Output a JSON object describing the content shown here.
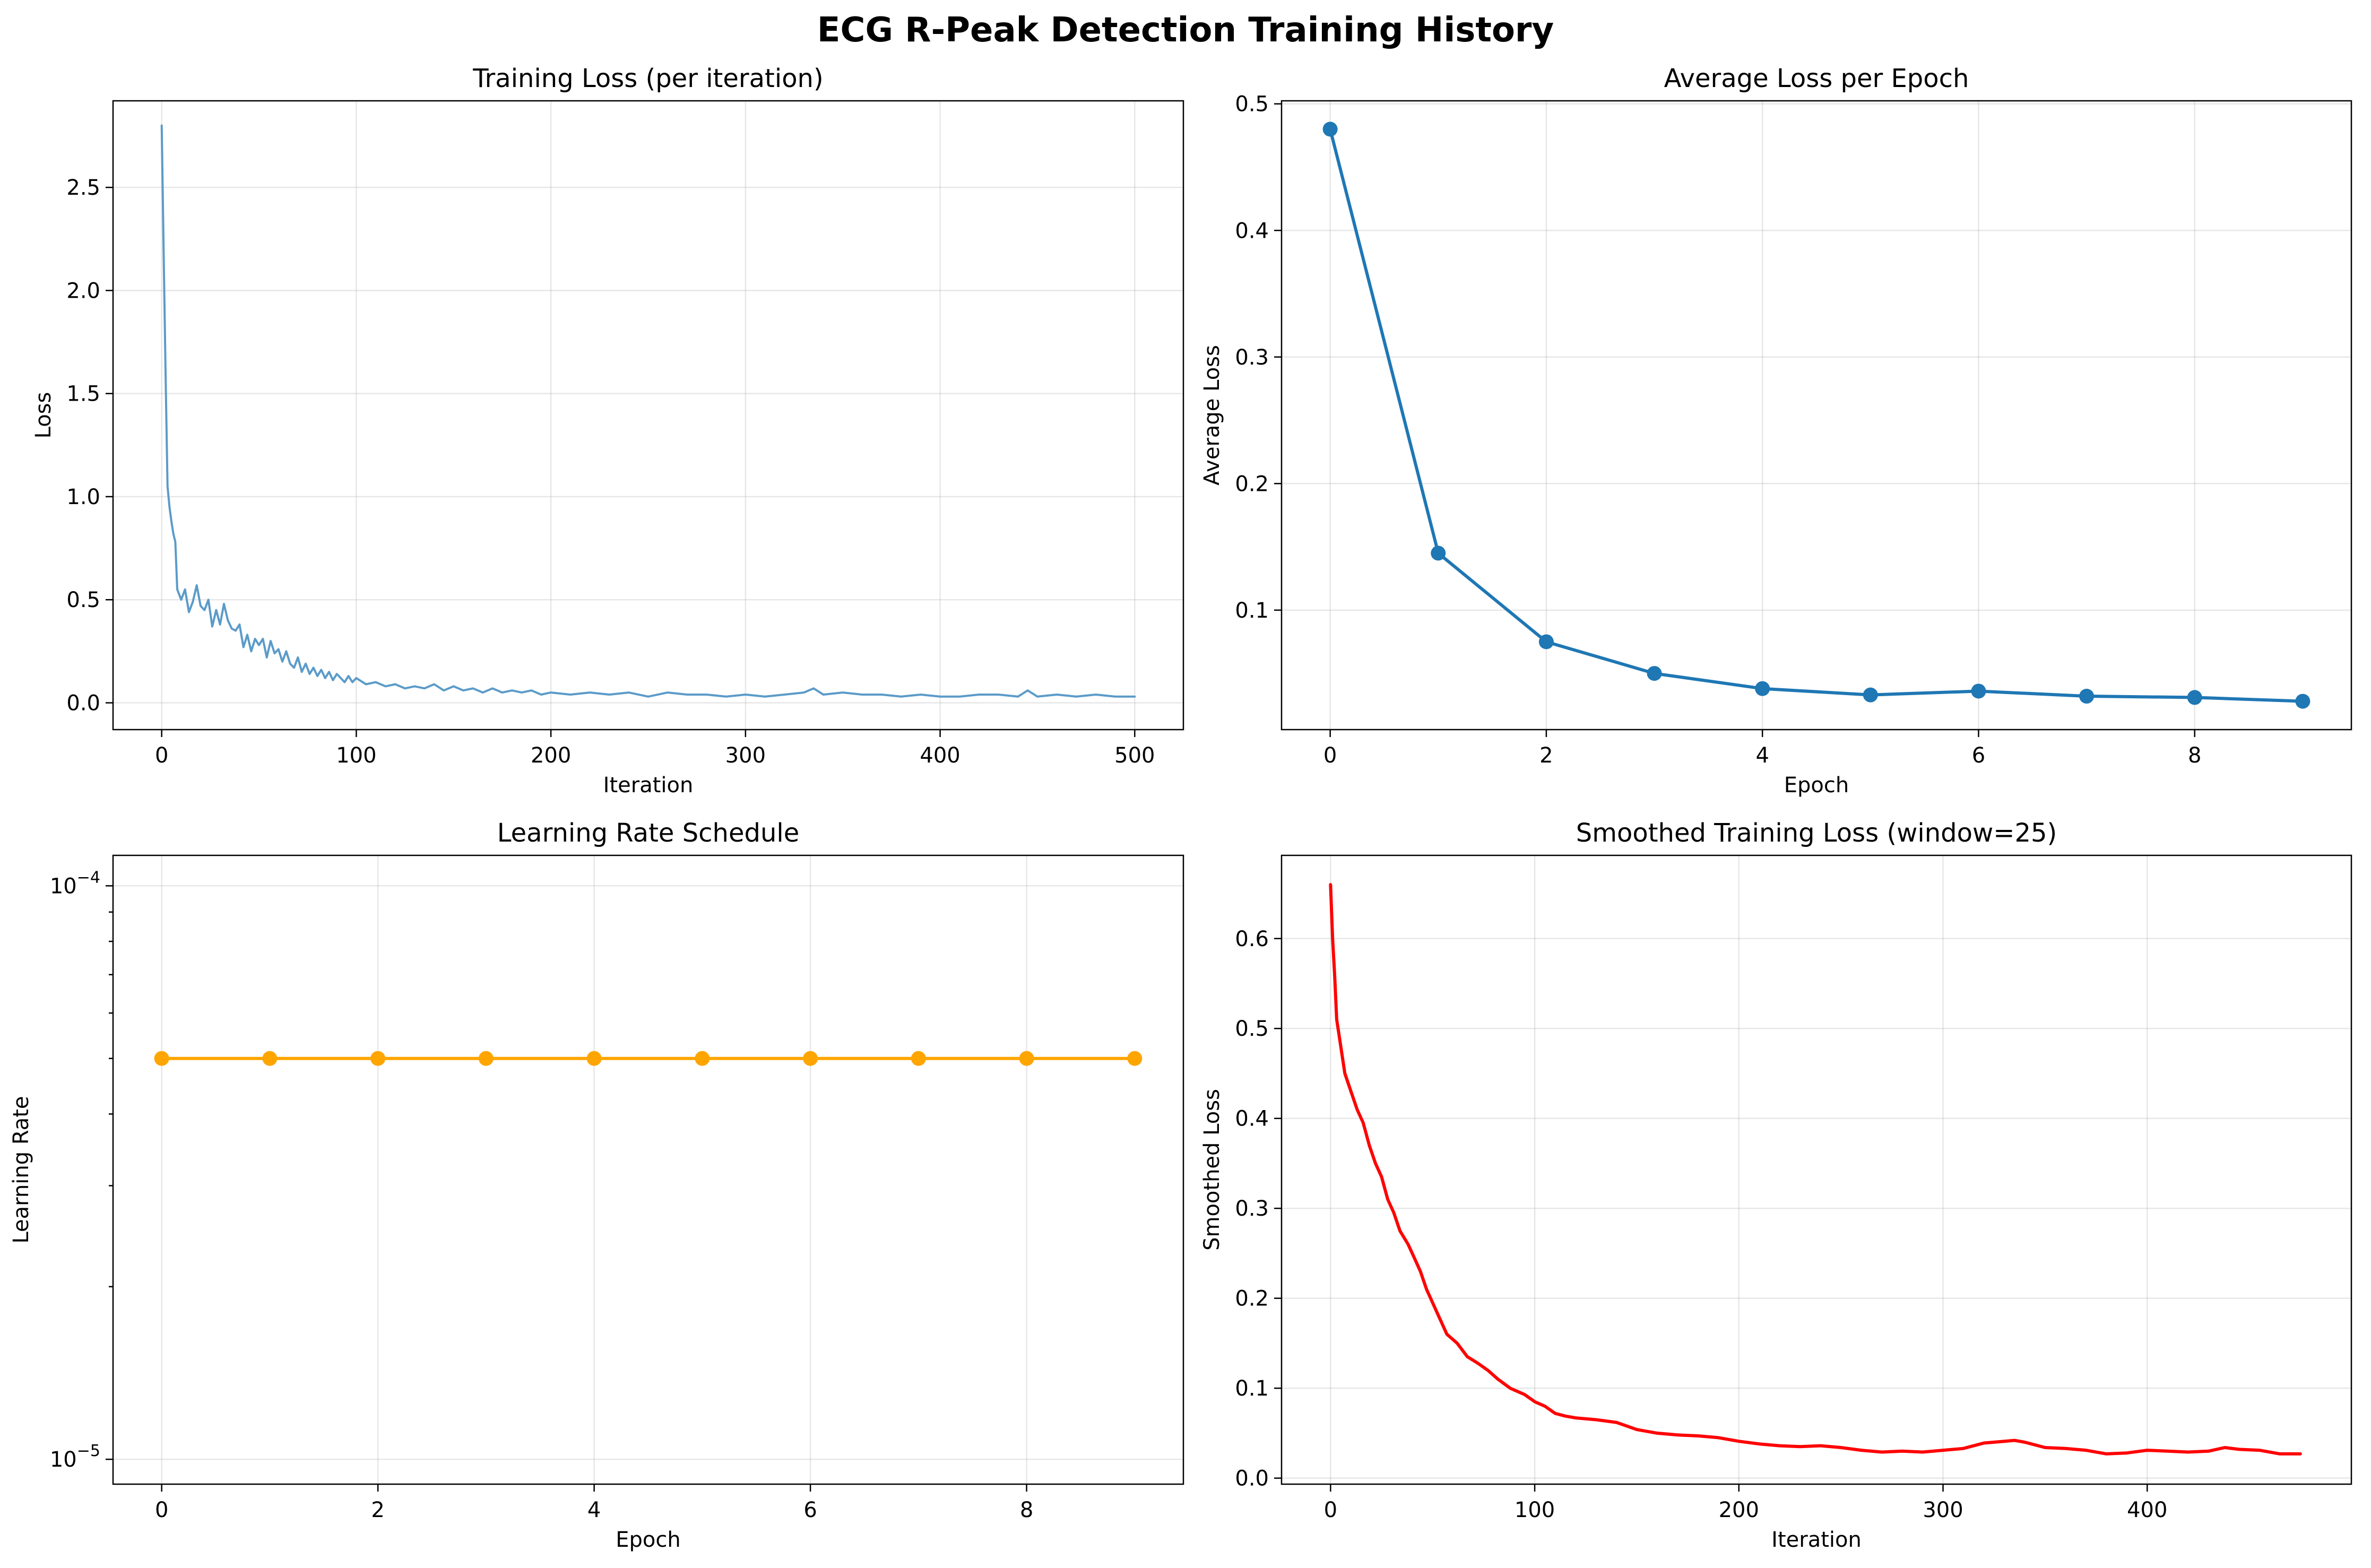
{
  "figure": {
    "title": "ECG R-Peak Detection Training History"
  },
  "chart_data": [
    {
      "id": "p1",
      "type": "line",
      "title": "Training Loss (per iteration)",
      "xlabel": "Iteration",
      "ylabel": "Loss",
      "xlim": [
        -25,
        525
      ],
      "ylim": [
        -0.13,
        2.92
      ],
      "xticks": [
        0,
        100,
        200,
        300,
        400,
        500
      ],
      "yticks": [
        0.0,
        0.5,
        1.0,
        1.5,
        2.0,
        2.5
      ],
      "ytick_labels": [
        "0.0",
        "0.5",
        "1.0",
        "1.5",
        "2.0",
        "2.5"
      ],
      "grid": true,
      "series": [
        {
          "color": "#5b9bc9",
          "points": [
            [
              0,
              2.8
            ],
            [
              1,
              2.2
            ],
            [
              2,
              1.6
            ],
            [
              3,
              1.05
            ],
            [
              4,
              0.95
            ],
            [
              5,
              0.88
            ],
            [
              6,
              0.82
            ],
            [
              7,
              0.78
            ],
            [
              8,
              0.55
            ],
            [
              10,
              0.5
            ],
            [
              12,
              0.55
            ],
            [
              14,
              0.44
            ],
            [
              16,
              0.49
            ],
            [
              18,
              0.57
            ],
            [
              20,
              0.47
            ],
            [
              22,
              0.45
            ],
            [
              24,
              0.5
            ],
            [
              26,
              0.37
            ],
            [
              28,
              0.45
            ],
            [
              30,
              0.38
            ],
            [
              32,
              0.48
            ],
            [
              34,
              0.4
            ],
            [
              36,
              0.36
            ],
            [
              38,
              0.35
            ],
            [
              40,
              0.38
            ],
            [
              42,
              0.27
            ],
            [
              44,
              0.33
            ],
            [
              46,
              0.25
            ],
            [
              48,
              0.31
            ],
            [
              50,
              0.28
            ],
            [
              52,
              0.31
            ],
            [
              54,
              0.22
            ],
            [
              56,
              0.3
            ],
            [
              58,
              0.24
            ],
            [
              60,
              0.26
            ],
            [
              62,
              0.2
            ],
            [
              64,
              0.25
            ],
            [
              66,
              0.19
            ],
            [
              68,
              0.17
            ],
            [
              70,
              0.22
            ],
            [
              72,
              0.15
            ],
            [
              74,
              0.19
            ],
            [
              76,
              0.14
            ],
            [
              78,
              0.17
            ],
            [
              80,
              0.13
            ],
            [
              82,
              0.16
            ],
            [
              84,
              0.12
            ],
            [
              86,
              0.15
            ],
            [
              88,
              0.11
            ],
            [
              90,
              0.14
            ],
            [
              92,
              0.12
            ],
            [
              94,
              0.1
            ],
            [
              96,
              0.13
            ],
            [
              98,
              0.1
            ],
            [
              100,
              0.12
            ],
            [
              105,
              0.09
            ],
            [
              110,
              0.1
            ],
            [
              115,
              0.08
            ],
            [
              120,
              0.09
            ],
            [
              125,
              0.07
            ],
            [
              130,
              0.08
            ],
            [
              135,
              0.07
            ],
            [
              140,
              0.09
            ],
            [
              145,
              0.06
            ],
            [
              150,
              0.08
            ],
            [
              155,
              0.06
            ],
            [
              160,
              0.07
            ],
            [
              165,
              0.05
            ],
            [
              170,
              0.07
            ],
            [
              175,
              0.05
            ],
            [
              180,
              0.06
            ],
            [
              185,
              0.05
            ],
            [
              190,
              0.06
            ],
            [
              195,
              0.04
            ],
            [
              200,
              0.05
            ],
            [
              210,
              0.04
            ],
            [
              220,
              0.05
            ],
            [
              230,
              0.04
            ],
            [
              240,
              0.05
            ],
            [
              250,
              0.03
            ],
            [
              260,
              0.05
            ],
            [
              270,
              0.04
            ],
            [
              280,
              0.04
            ],
            [
              290,
              0.03
            ],
            [
              300,
              0.04
            ],
            [
              310,
              0.03
            ],
            [
              320,
              0.04
            ],
            [
              330,
              0.05
            ],
            [
              335,
              0.07
            ],
            [
              340,
              0.04
            ],
            [
              350,
              0.05
            ],
            [
              360,
              0.04
            ],
            [
              370,
              0.04
            ],
            [
              380,
              0.03
            ],
            [
              390,
              0.04
            ],
            [
              400,
              0.03
            ],
            [
              410,
              0.03
            ],
            [
              420,
              0.04
            ],
            [
              430,
              0.04
            ],
            [
              440,
              0.03
            ],
            [
              445,
              0.06
            ],
            [
              450,
              0.03
            ],
            [
              460,
              0.04
            ],
            [
              470,
              0.03
            ],
            [
              480,
              0.04
            ],
            [
              490,
              0.03
            ],
            [
              500,
              0.03
            ]
          ]
        }
      ]
    },
    {
      "id": "p2",
      "type": "line",
      "title": "Average Loss per Epoch",
      "xlabel": "Epoch",
      "ylabel": "Average Loss",
      "xlim": [
        -0.45,
        9.45
      ],
      "ylim": [
        0.0056,
        0.5024
      ],
      "xticks": [
        0,
        2,
        4,
        6,
        8
      ],
      "yticks": [
        0.1,
        0.2,
        0.3,
        0.4,
        0.5
      ],
      "ytick_labels": [
        "0.1",
        "0.2",
        "0.3",
        "0.4",
        "0.5"
      ],
      "grid": true,
      "series": [
        {
          "color": "#1f77b4",
          "markers": true,
          "points": [
            [
              0,
              0.48
            ],
            [
              1,
              0.145
            ],
            [
              2,
              0.075
            ],
            [
              3,
              0.05
            ],
            [
              4,
              0.038
            ],
            [
              5,
              0.033
            ],
            [
              6,
              0.036
            ],
            [
              7,
              0.032
            ],
            [
              8,
              0.031
            ],
            [
              9,
              0.028
            ]
          ]
        }
      ]
    },
    {
      "id": "p3",
      "type": "line",
      "title": "Learning Rate Schedule",
      "xlabel": "Epoch",
      "ylabel": "Learning Rate",
      "xlim": [
        -0.45,
        9.45
      ],
      "ylim": [
        9.05e-06,
        0.000113
      ],
      "yscale": "log",
      "xticks": [
        0,
        2,
        4,
        6,
        8
      ],
      "yticks_major": [
        1e-05,
        0.0001
      ],
      "ytick_major_base": "10",
      "ytick_major_exp": [
        "−5",
        "−4"
      ],
      "yticks_minor": [
        2e-05,
        3e-05,
        4e-05,
        5e-05,
        6e-05,
        7e-05,
        8e-05,
        9e-05
      ],
      "grid": true,
      "series": [
        {
          "color": "#ffa500",
          "markers": true,
          "points": [
            [
              0,
              5e-05
            ],
            [
              1,
              5e-05
            ],
            [
              2,
              5e-05
            ],
            [
              3,
              5e-05
            ],
            [
              4,
              5e-05
            ],
            [
              5,
              5e-05
            ],
            [
              6,
              5e-05
            ],
            [
              7,
              5e-05
            ],
            [
              8,
              5e-05
            ],
            [
              9,
              5e-05
            ]
          ]
        }
      ]
    },
    {
      "id": "p4",
      "type": "line",
      "title": "Smoothed Training Loss (window=25)",
      "xlabel": "Iteration",
      "ylabel": "Smoothed Loss",
      "xlim": [
        -24,
        500
      ],
      "ylim": [
        -0.0067,
        0.6925
      ],
      "xticks": [
        0,
        100,
        200,
        300,
        400
      ],
      "yticks": [
        0.0,
        0.1,
        0.2,
        0.3,
        0.4,
        0.5,
        0.6
      ],
      "ytick_labels": [
        "0.0",
        "0.1",
        "0.2",
        "0.3",
        "0.4",
        "0.5",
        "0.6"
      ],
      "grid": true,
      "series": [
        {
          "color": "#ff0000",
          "points": [
            [
              0,
              0.66
            ],
            [
              1,
              0.6
            ],
            [
              2,
              0.56
            ],
            [
              3,
              0.51
            ],
            [
              5,
              0.48
            ],
            [
              7,
              0.45
            ],
            [
              10,
              0.43
            ],
            [
              13,
              0.41
            ],
            [
              16,
              0.395
            ],
            [
              19,
              0.37
            ],
            [
              22,
              0.35
            ],
            [
              25,
              0.335
            ],
            [
              28,
              0.31
            ],
            [
              31,
              0.295
            ],
            [
              34,
              0.275
            ],
            [
              38,
              0.26
            ],
            [
              41,
              0.245
            ],
            [
              44,
              0.23
            ],
            [
              47,
              0.21
            ],
            [
              50,
              0.195
            ],
            [
              53,
              0.18
            ],
            [
              57,
              0.16
            ],
            [
              62,
              0.15
            ],
            [
              67,
              0.135
            ],
            [
              72,
              0.128
            ],
            [
              77,
              0.12
            ],
            [
              82,
              0.11
            ],
            [
              88,
              0.1
            ],
            [
              95,
              0.093
            ],
            [
              100,
              0.085
            ],
            [
              105,
              0.08
            ],
            [
              110,
              0.072
            ],
            [
              115,
              0.069
            ],
            [
              120,
              0.067
            ],
            [
              130,
              0.065
            ],
            [
              140,
              0.062
            ],
            [
              145,
              0.058
            ],
            [
              150,
              0.054
            ],
            [
              160,
              0.05
            ],
            [
              170,
              0.048
            ],
            [
              180,
              0.047
            ],
            [
              190,
              0.045
            ],
            [
              200,
              0.041
            ],
            [
              210,
              0.038
            ],
            [
              220,
              0.036
            ],
            [
              230,
              0.035
            ],
            [
              240,
              0.036
            ],
            [
              250,
              0.034
            ],
            [
              260,
              0.031
            ],
            [
              270,
              0.029
            ],
            [
              280,
              0.03
            ],
            [
              290,
              0.029
            ],
            [
              300,
              0.031
            ],
            [
              310,
              0.033
            ],
            [
              320,
              0.039
            ],
            [
              330,
              0.041
            ],
            [
              335,
              0.042
            ],
            [
              340,
              0.04
            ],
            [
              350,
              0.034
            ],
            [
              360,
              0.033
            ],
            [
              370,
              0.031
            ],
            [
              380,
              0.027
            ],
            [
              390,
              0.028
            ],
            [
              400,
              0.031
            ],
            [
              410,
              0.03
            ],
            [
              420,
              0.029
            ],
            [
              430,
              0.03
            ],
            [
              438,
              0.034
            ],
            [
              445,
              0.032
            ],
            [
              455,
              0.031
            ],
            [
              465,
              0.027
            ],
            [
              475,
              0.027
            ]
          ]
        }
      ]
    }
  ]
}
